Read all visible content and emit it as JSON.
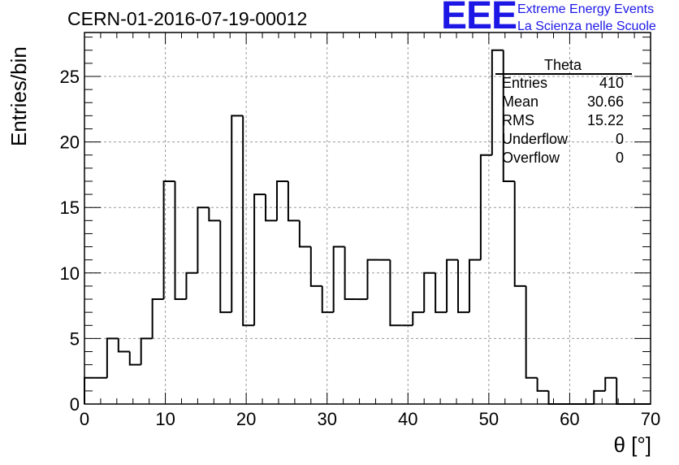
{
  "header": {
    "run_title": "CERN-01-2016-07-19-00012",
    "logo_text": "EEE",
    "logo_line1": "Extreme Energy Events",
    "logo_line2": "La Scienza nelle Scuole"
  },
  "stats_box": {
    "title": "Theta",
    "rows": [
      {
        "name": "Entries",
        "value": "410"
      },
      {
        "name": "Mean",
        "value": "30.66"
      },
      {
        "name": "RMS",
        "value": "15.22"
      },
      {
        "name": "Underflow",
        "value": "0"
      },
      {
        "name": "Overflow",
        "value": "0"
      }
    ]
  },
  "colors": {
    "logo": "#1d17e6",
    "line": "#000000",
    "grid": "#9a9a9a"
  },
  "chart_data": {
    "type": "bar",
    "style": "step-histogram",
    "xlabel": "θ [°]",
    "ylabel": "Entries/bin",
    "xlim": [
      0,
      70
    ],
    "ylim": [
      0,
      28.35
    ],
    "bin_width": 1.4,
    "bin_low_edges": [
      0,
      1.4,
      2.8,
      4.2,
      5.6,
      7.0,
      8.4,
      9.8,
      11.2,
      12.6,
      14.0,
      15.4,
      16.8,
      18.2,
      19.6,
      21.0,
      22.4,
      23.8,
      25.2,
      26.6,
      28.0,
      29.4,
      30.8,
      32.2,
      33.6,
      35.0,
      36.4,
      37.8,
      39.2,
      40.6,
      42.0,
      43.4,
      44.8,
      46.2,
      47.6,
      49.0,
      50.4,
      51.8,
      53.2,
      54.6,
      56.0,
      57.4,
      58.8,
      60.2,
      61.6,
      63.0,
      64.4,
      65.8,
      67.2,
      68.6
    ],
    "values": [
      2,
      2,
      5,
      4,
      3,
      5,
      8,
      17,
      8,
      10,
      15,
      14,
      7,
      22,
      6,
      16,
      14,
      17,
      14,
      12,
      9,
      7,
      12,
      8,
      8,
      11,
      11,
      6,
      6,
      7,
      10,
      7,
      11,
      7,
      11,
      19,
      27,
      17,
      9,
      2,
      1,
      0,
      0,
      0,
      0,
      1,
      2,
      0,
      0,
      0
    ],
    "x_ticks": [
      0,
      10,
      20,
      30,
      40,
      50,
      60,
      70
    ],
    "y_ticks": [
      0,
      5,
      10,
      15,
      20,
      25
    ],
    "grid": true
  }
}
